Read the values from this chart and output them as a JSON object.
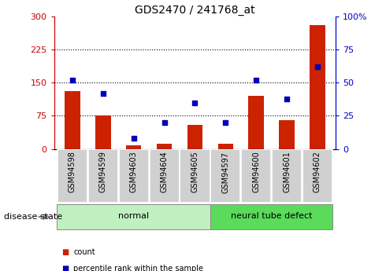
{
  "title": "GDS2470 / 241768_at",
  "categories": [
    "GSM94598",
    "GSM94599",
    "GSM94603",
    "GSM94604",
    "GSM94605",
    "GSM94597",
    "GSM94600",
    "GSM94601",
    "GSM94602"
  ],
  "red_bars": [
    130,
    75,
    8,
    12,
    55,
    12,
    120,
    65,
    280
  ],
  "blue_dots": [
    52,
    42,
    8,
    20,
    35,
    20,
    52,
    38,
    62
  ],
  "groups": [
    {
      "label": "normal",
      "indices": [
        0,
        1,
        2,
        3,
        4
      ],
      "color": "#c0f0c0"
    },
    {
      "label": "neural tube defect",
      "indices": [
        5,
        6,
        7,
        8
      ],
      "color": "#5adc5a"
    }
  ],
  "left_ylim": [
    0,
    300
  ],
  "right_ylim": [
    0,
    100
  ],
  "left_yticks": [
    0,
    75,
    150,
    225,
    300
  ],
  "right_yticks": [
    0,
    25,
    50,
    75,
    100
  ],
  "left_ycolor": "#cc0000",
  "right_ycolor": "#0000cc",
  "bar_color": "#cc2200",
  "dot_color": "#0000bb",
  "grid_yticks": [
    75,
    150,
    225
  ],
  "legend_items": [
    {
      "label": "count",
      "color": "#cc2200"
    },
    {
      "label": "percentile rank within the sample",
      "color": "#0000bb"
    }
  ],
  "disease_state_label": "disease state",
  "bar_width": 0.5,
  "xticklabel_bg": "#d0d0d0"
}
